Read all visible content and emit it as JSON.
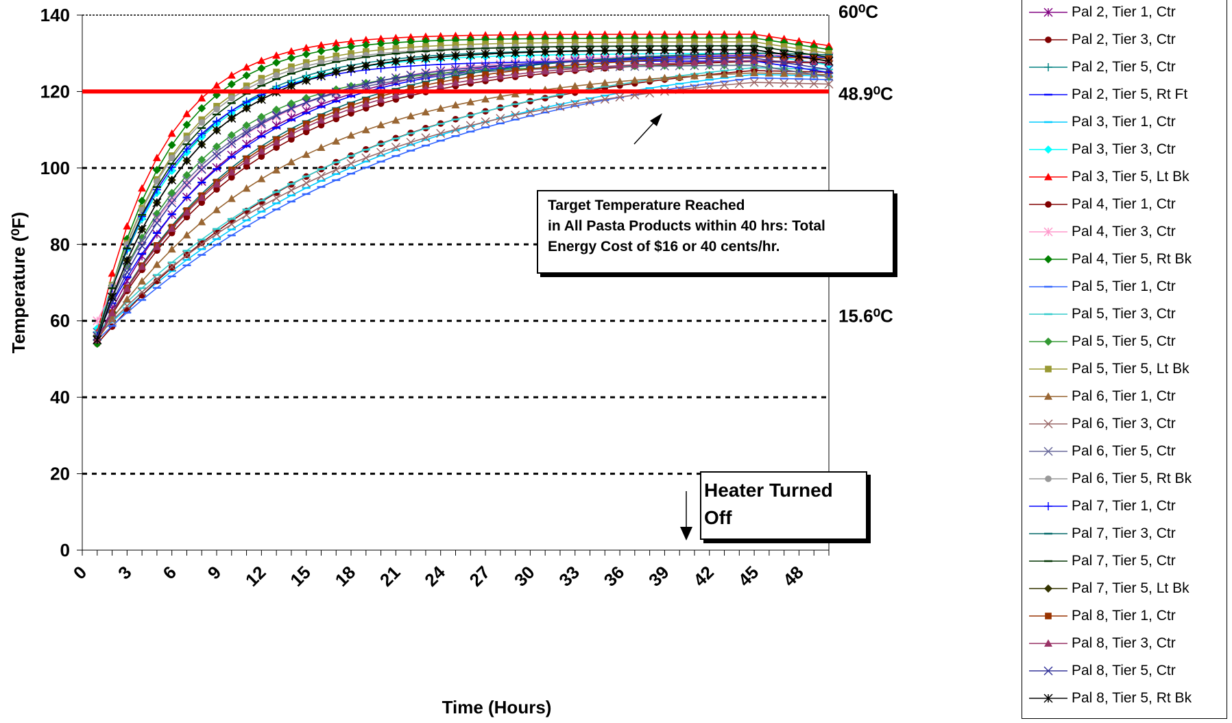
{
  "chart_data": {
    "type": "line",
    "xlabel": "Time (Hours)",
    "ylabel": "Temperature (⁰F)",
    "xlim": [
      0,
      50
    ],
    "ylim": [
      0,
      140
    ],
    "x_ticks": [
      "0",
      "3",
      "6",
      "9",
      "12",
      "15",
      "18",
      "21",
      "24",
      "27",
      "30",
      "33",
      "36",
      "39",
      "42",
      "45",
      "48"
    ],
    "y_ticks": [
      "0",
      "20",
      "40",
      "60",
      "80",
      "100",
      "120",
      "140"
    ],
    "gridlines_y": [
      20,
      40,
      60,
      80,
      100
    ],
    "reference_line": {
      "y": 120,
      "color": "#ff0000"
    },
    "right_labels": [
      {
        "y": 140,
        "text": "60⁰C"
      },
      {
        "y": 120,
        "text": "48.9⁰C"
      },
      {
        "y": 60,
        "text": "15.6⁰C"
      }
    ],
    "legend_position": "right",
    "series": [
      {
        "name": "Pal 2, Tier 1, Ctr",
        "color": "#800080",
        "marker": "star",
        "y0": 55,
        "k": 0.115,
        "ymax": 130
      },
      {
        "name": "Pal 2, Tier 3, Ctr",
        "color": "#800000",
        "marker": "circle",
        "y0": 55,
        "k": 0.095,
        "ymax": 129
      },
      {
        "name": "Pal 2, Tier 5, Ctr",
        "color": "#008080",
        "marker": "plus",
        "y0": 57,
        "k": 0.17,
        "ymax": 131
      },
      {
        "name": "Pal 2, Tier 5, Rt Ft",
        "color": "#0000ff",
        "marker": "dash",
        "y0": 57,
        "k": 0.11,
        "ymax": 130
      },
      {
        "name": "Pal 3, Tier 1, Ctr",
        "color": "#00ccff",
        "marker": "dash",
        "y0": 56,
        "k": 0.05,
        "ymax": 133
      },
      {
        "name": "Pal 3, Tier 3, Ctr",
        "color": "#00ffff",
        "marker": "diamond",
        "y0": 58,
        "k": 0.17,
        "ymax": 130
      },
      {
        "name": "Pal 3, Tier 5, Lt Bk",
        "color": "#ff0000",
        "marker": "triangle",
        "y0": 57,
        "k": 0.22,
        "ymax": 135
      },
      {
        "name": "Pal 4, Tier 1, Ctr",
        "color": "#800000",
        "marker": "circle",
        "y0": 54,
        "k": 0.06,
        "ymax": 131
      },
      {
        "name": "Pal 4, Tier 3, Ctr",
        "color": "#ff99cc",
        "marker": "star",
        "y0": 60,
        "k": 0.12,
        "ymax": 130
      },
      {
        "name": "Pal 4, Tier 5, Rt Bk",
        "color": "#008000",
        "marker": "diamond",
        "y0": 54,
        "k": 0.21,
        "ymax": 134
      },
      {
        "name": "Pal 5, Tier 1, Ctr",
        "color": "#3366ff",
        "marker": "dash",
        "y0": 55,
        "k": 0.048,
        "ymax": 133
      },
      {
        "name": "Pal 5, Tier 3, Ctr",
        "color": "#33cccc",
        "marker": "dash",
        "y0": 57,
        "k": 0.055,
        "ymax": 133
      },
      {
        "name": "Pal 5, Tier 5, Ctr",
        "color": "#339933",
        "marker": "diamond",
        "y0": 56,
        "k": 0.15,
        "ymax": 127
      },
      {
        "name": "Pal 5, Tier 5, Lt Bk",
        "color": "#999933",
        "marker": "square",
        "y0": 56,
        "k": 0.19,
        "ymax": 133
      },
      {
        "name": "Pal 6, Tier 1, Ctr",
        "color": "#996633",
        "marker": "triangle",
        "y0": 55,
        "k": 0.08,
        "ymax": 127
      },
      {
        "name": "Pal 6, Tier 3, Ctr",
        "color": "#996666",
        "marker": "x",
        "y0": 56,
        "k": 0.058,
        "ymax": 128
      },
      {
        "name": "Pal 6, Tier 5, Ctr",
        "color": "#666699",
        "marker": "x",
        "y0": 57,
        "k": 0.14,
        "ymax": 127
      },
      {
        "name": "Pal 6, Tier 5, Rt Bk",
        "color": "#999999",
        "marker": "circle",
        "y0": 56,
        "k": 0.19,
        "ymax": 132
      },
      {
        "name": "Pal 7, Tier 1, Ctr",
        "color": "#0000ff",
        "marker": "plus",
        "y0": 56,
        "k": 0.19,
        "ymax": 128
      },
      {
        "name": "Pal 7, Tier 3, Ctr",
        "color": "#006666",
        "marker": "dash",
        "y0": 55,
        "k": 0.1,
        "ymax": 131
      },
      {
        "name": "Pal 7, Tier 5, Ctr",
        "color": "#003300",
        "marker": "dash",
        "y0": 56,
        "k": 0.18,
        "ymax": 132
      },
      {
        "name": "Pal 7, Tier 5, Lt Bk",
        "color": "#333300",
        "marker": "diamond",
        "y0": 55,
        "k": 0.16,
        "ymax": 131
      },
      {
        "name": "Pal 8, Tier 1, Ctr",
        "color": "#993300",
        "marker": "square",
        "y0": 55,
        "k": 0.1,
        "ymax": 130
      },
      {
        "name": "Pal 8, Tier 3, Ctr",
        "color": "#993366",
        "marker": "triangle",
        "y0": 55,
        "k": 0.1,
        "ymax": 129
      },
      {
        "name": "Pal 8, Tier 5, Ctr",
        "color": "#333399",
        "marker": "x",
        "y0": 56,
        "k": 0.13,
        "ymax": 129
      },
      {
        "name": "Pal 8, Tier 5, Rt Bk",
        "color": "#000000",
        "marker": "star",
        "y0": 55,
        "k": 0.16,
        "ymax": 131
      }
    ]
  },
  "annotations": {
    "target": {
      "line1": "Target Temperature Reached",
      "line2": "in All Pasta Products within 40 hrs: Total",
      "line3": "Energy Cost of $16 or 40 cents/hr."
    },
    "heater": {
      "line1": "Heater Turned",
      "line2": "Off"
    }
  }
}
